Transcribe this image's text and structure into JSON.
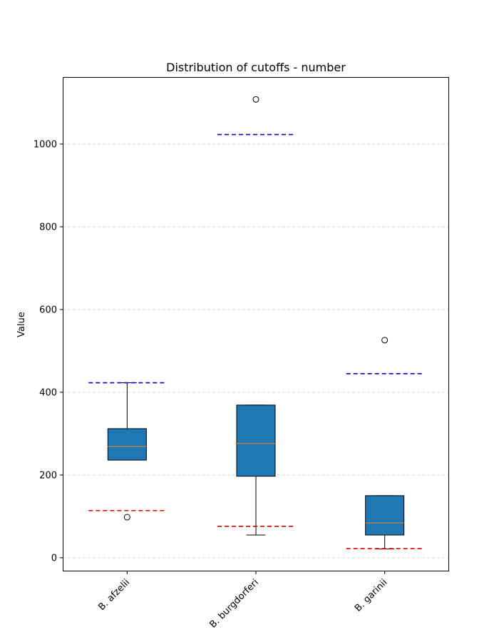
{
  "chart_data": {
    "type": "boxplot",
    "title": "Distribution of cutoffs - number",
    "xlabel": "",
    "ylabel": "Value",
    "ylim": [
      -33,
      1162
    ],
    "yticks": [
      0,
      200,
      400,
      600,
      800,
      1000
    ],
    "grid": "horizontal dashed",
    "categories": [
      "B. afzelii",
      "B. burgdorferi",
      "B. garinii"
    ],
    "boxes": [
      {
        "whisker_low": 236,
        "q1": 236,
        "median": 269,
        "q3": 312,
        "whisker_high": 423,
        "outliers": [
          98
        ],
        "upper_cutoff": 423,
        "lower_cutoff": 114
      },
      {
        "whisker_low": 55,
        "q1": 197,
        "median": 276,
        "q3": 369,
        "whisker_high": 369,
        "outliers": [
          1108
        ],
        "upper_cutoff": 1023,
        "lower_cutoff": 76
      },
      {
        "whisker_low": 21,
        "q1": 55,
        "median": 84,
        "q3": 150,
        "whisker_high": 150,
        "outliers": [
          526
        ],
        "upper_cutoff": 445,
        "lower_cutoff": 22
      }
    ],
    "colors": {
      "box_fill": "#1f77b4",
      "median": "#ff7f0e",
      "upper_cutoff": "#0000cc",
      "lower_cutoff": "#dd0000",
      "grid": "#cccccc"
    }
  }
}
